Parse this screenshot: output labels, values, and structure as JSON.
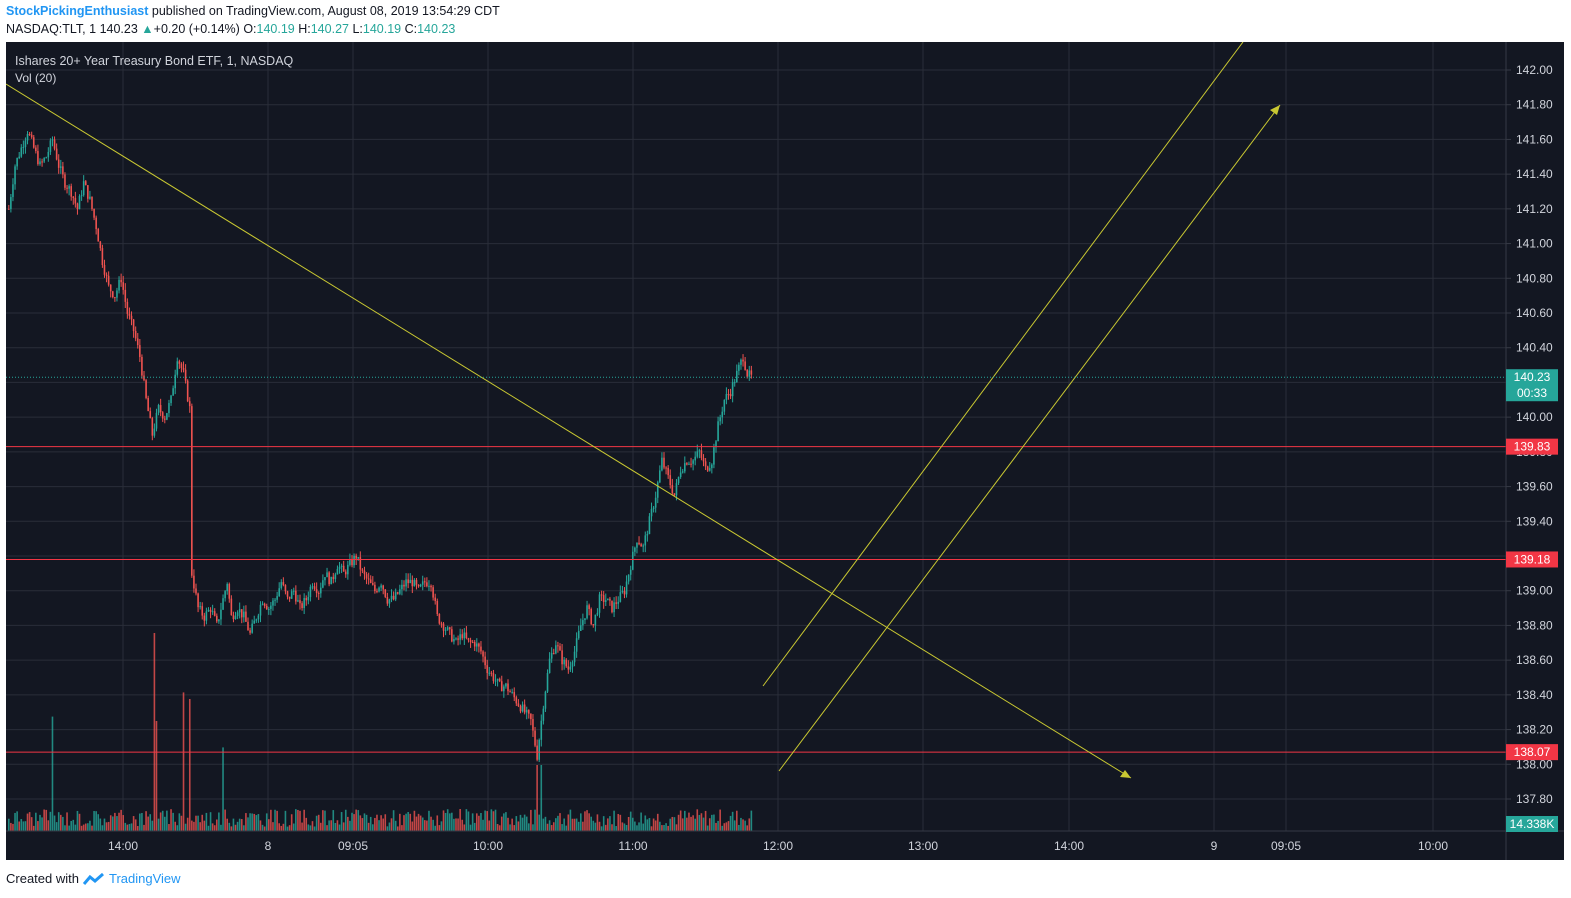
{
  "header": {
    "author": "StockPickingEnthusiast",
    "published": "published on TradingView.com, August 08, 2019 13:54:29 CDT"
  },
  "quote": {
    "symbol": "NASDAQ:TLT, 1",
    "last": "140.23",
    "change": "+0.20 (+0.14%)",
    "o_label": "O:",
    "o": "140.19",
    "h_label": "H:",
    "h": "140.27",
    "l_label": "L:",
    "l": "140.19",
    "c_label": "C:",
    "c": "140.23"
  },
  "chart_data": {
    "type": "candlestick",
    "title": "Ishares 20+ Year Treasury Bond ETF, 1, NASDAQ",
    "volume_label": "Vol (20)",
    "price_axis": {
      "ylim": [
        137.7,
        142.1
      ],
      "ticks": [
        "142.00",
        "141.80",
        "141.60",
        "141.40",
        "141.20",
        "141.00",
        "140.80",
        "140.60",
        "140.40",
        "140.20",
        "140.00",
        "139.80",
        "139.60",
        "139.40",
        "139.20",
        "139.00",
        "138.80",
        "138.60",
        "138.40",
        "138.20",
        "138.00",
        "137.80"
      ],
      "tick_values": [
        142.0,
        141.8,
        141.6,
        141.4,
        141.2,
        141.0,
        140.8,
        140.6,
        140.4,
        140.2,
        140.0,
        139.8,
        139.6,
        139.4,
        139.2,
        139.0,
        138.8,
        138.6,
        138.4,
        138.2,
        138.0,
        137.8
      ]
    },
    "time_axis": {
      "ticks": [
        "14:00",
        "8",
        "09:05",
        "10:00",
        "11:00",
        "12:00",
        "13:00",
        "14:00",
        "9",
        "09:05",
        "10:00"
      ]
    },
    "last_price": {
      "value": 140.23,
      "label": "140.23",
      "countdown": "00:33"
    },
    "volume_badge": "14.338K",
    "horizontal_levels": [
      {
        "value": 139.83,
        "label": "139.83"
      },
      {
        "value": 139.18,
        "label": "139.18"
      },
      {
        "value": 138.07,
        "label": "138.07"
      }
    ],
    "price_path": [
      [
        0,
        141.2
      ],
      [
        3,
        141.45
      ],
      [
        6,
        141.55
      ],
      [
        9,
        141.65
      ],
      [
        12,
        141.55
      ],
      [
        15,
        141.45
      ],
      [
        18,
        141.5
      ],
      [
        21,
        141.6
      ],
      [
        24,
        141.45
      ],
      [
        27,
        141.35
      ],
      [
        30,
        141.3
      ],
      [
        33,
        141.2
      ],
      [
        36,
        141.35
      ],
      [
        39,
        141.25
      ],
      [
        42,
        141.1
      ],
      [
        45,
        140.9
      ],
      [
        48,
        140.75
      ],
      [
        51,
        140.7
      ],
      [
        54,
        140.8
      ],
      [
        57,
        140.6
      ],
      [
        60,
        140.5
      ],
      [
        63,
        140.35
      ],
      [
        66,
        140.1
      ],
      [
        69,
        139.9
      ],
      [
        72,
        140.05
      ],
      [
        75,
        140.0
      ],
      [
        78,
        140.1
      ],
      [
        81,
        140.35
      ],
      [
        84,
        140.25
      ],
      [
        87,
        140.05
      ],
      [
        88,
        139.1
      ],
      [
        91,
        138.9
      ],
      [
        94,
        138.85
      ],
      [
        97,
        138.9
      ],
      [
        100,
        138.8
      ],
      [
        103,
        138.95
      ],
      [
        105,
        139.05
      ],
      [
        107,
        138.85
      ],
      [
        110,
        138.9
      ],
      [
        113,
        138.85
      ],
      [
        116,
        138.75
      ],
      [
        119,
        138.85
      ],
      [
        122,
        138.95
      ],
      [
        125,
        138.9
      ],
      [
        128,
        138.95
      ],
      [
        131,
        139.05
      ],
      [
        134,
        138.95
      ],
      [
        137,
        139.0
      ],
      [
        140,
        138.9
      ],
      [
        143,
        138.95
      ],
      [
        146,
        139.05
      ],
      [
        149,
        139.0
      ],
      [
        152,
        139.1
      ],
      [
        155,
        139.05
      ],
      [
        158,
        139.15
      ],
      [
        161,
        139.1
      ],
      [
        164,
        139.15
      ],
      [
        167,
        139.2
      ],
      [
        170,
        139.1
      ],
      [
        173,
        139.05
      ],
      [
        176,
        139.0
      ],
      [
        179,
        139.05
      ],
      [
        182,
        138.95
      ],
      [
        185,
        138.95
      ],
      [
        188,
        139.0
      ],
      [
        191,
        139.05
      ],
      [
        194,
        139.05
      ],
      [
        197,
        139.0
      ],
      [
        200,
        139.05
      ],
      [
        203,
        139.05
      ],
      [
        206,
        138.85
      ],
      [
        209,
        138.8
      ],
      [
        212,
        138.75
      ],
      [
        215,
        138.7
      ],
      [
        218,
        138.75
      ],
      [
        221,
        138.7
      ],
      [
        224,
        138.7
      ],
      [
        227,
        138.65
      ],
      [
        230,
        138.55
      ],
      [
        233,
        138.5
      ],
      [
        236,
        138.45
      ],
      [
        239,
        138.45
      ],
      [
        242,
        138.4
      ],
      [
        245,
        138.35
      ],
      [
        248,
        138.3
      ],
      [
        251,
        138.25
      ],
      [
        254,
        138.05
      ],
      [
        257,
        138.35
      ],
      [
        260,
        138.6
      ],
      [
        263,
        138.7
      ],
      [
        266,
        138.6
      ],
      [
        269,
        138.55
      ],
      [
        272,
        138.65
      ],
      [
        275,
        138.8
      ],
      [
        278,
        138.9
      ],
      [
        281,
        138.8
      ],
      [
        284,
        138.95
      ],
      [
        287,
        138.95
      ],
      [
        290,
        138.9
      ],
      [
        293,
        138.95
      ],
      [
        296,
        139.0
      ],
      [
        299,
        139.15
      ],
      [
        302,
        139.3
      ],
      [
        305,
        139.25
      ],
      [
        308,
        139.4
      ],
      [
        311,
        139.55
      ],
      [
        314,
        139.75
      ],
      [
        317,
        139.65
      ],
      [
        320,
        139.55
      ],
      [
        323,
        139.7
      ],
      [
        326,
        139.75
      ],
      [
        329,
        139.75
      ],
      [
        332,
        139.8
      ],
      [
        335,
        139.7
      ],
      [
        338,
        139.75
      ],
      [
        341,
        139.95
      ],
      [
        344,
        140.1
      ],
      [
        347,
        140.15
      ],
      [
        350,
        140.25
      ],
      [
        353,
        140.35
      ],
      [
        355,
        140.25
      ],
      [
        357,
        140.23
      ]
    ],
    "volume_spikes": [
      {
        "bar": 21,
        "value": 5.2,
        "color": "green"
      },
      {
        "bar": 70,
        "value": 9.0,
        "color": "red"
      },
      {
        "bar": 71,
        "value": 5.0,
        "color": "red"
      },
      {
        "bar": 84,
        "value": 6.3,
        "color": "red"
      },
      {
        "bar": 87,
        "value": 6.0,
        "color": "red"
      },
      {
        "bar": 103,
        "value": 3.8,
        "color": "green"
      },
      {
        "bar": 254,
        "value": 3.0,
        "color": "red"
      },
      {
        "bar": 256,
        "value": 3.0,
        "color": "green"
      }
    ]
  },
  "footer": {
    "created": "Created with",
    "brand": "TradingView"
  }
}
